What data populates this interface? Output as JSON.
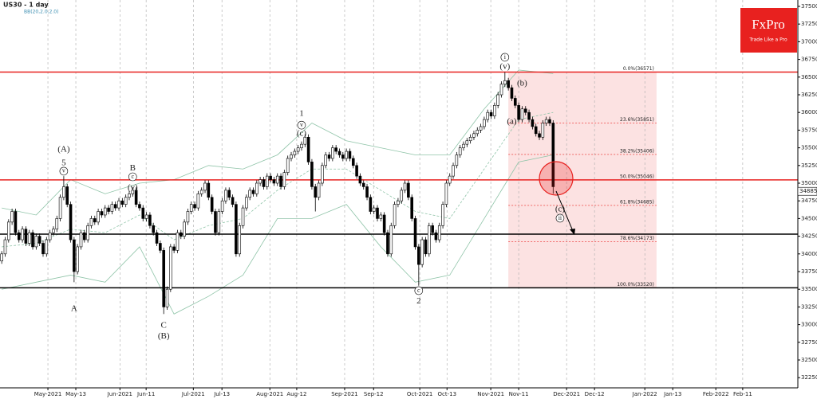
{
  "chart_data": {
    "type": "candlestick",
    "title": "US30 - 1 day",
    "indicator": "BB(20,2.0,2.0)",
    "logo": {
      "name": "FxPro",
      "tagline": "Trade Like a Pro"
    },
    "up_color": "#ffffff",
    "down_color": "#000000",
    "edge_color": "#000000",
    "band_color": "#8fc4a8",
    "xlim": [
      -0.5,
      231
    ],
    "xticks": [
      {
        "value": 13.4,
        "label": "May-2021"
      },
      {
        "value": 21.5,
        "label": "May-13"
      },
      {
        "value": 34.3,
        "label": "Jun-2021"
      },
      {
        "value": 41.9,
        "label": "Jun-11"
      },
      {
        "value": 55.6,
        "label": "Jul-2021"
      },
      {
        "value": 63.9,
        "label": "Jul-13"
      },
      {
        "value": 77.8,
        "label": "Aug-2021"
      },
      {
        "value": 85.6,
        "label": "Aug-12"
      },
      {
        "value": 99.5,
        "label": "Sep-2021"
      },
      {
        "value": 107.9,
        "label": "Sep-12"
      },
      {
        "value": 121.3,
        "label": "Oct-2021"
      },
      {
        "value": 129.2,
        "label": "Oct-13"
      },
      {
        "value": 141.9,
        "label": "Nov-2021"
      },
      {
        "value": 150,
        "label": "Nov-11"
      },
      {
        "value": 163.9,
        "label": "Dec-2021"
      },
      {
        "value": 172,
        "label": "Dec-12"
      },
      {
        "value": 186.6,
        "label": "Jan-2022"
      },
      {
        "value": 194.7,
        "label": "Jan-13"
      },
      {
        "value": 207.2,
        "label": "Feb-2022"
      },
      {
        "value": 215,
        "label": "Feb-11"
      }
    ],
    "ylim": [
      32106,
      37590
    ],
    "yticks": [
      32250,
      32500,
      32750,
      33000,
      33250,
      33500,
      33750,
      34000,
      34250,
      34500,
      34750,
      35000,
      35250,
      35500,
      35750,
      36000,
      36250,
      36500,
      36750,
      37000,
      37250,
      37500
    ],
    "grid": true,
    "open": [
      33900,
      34000,
      34200,
      34450,
      34600,
      34300,
      34200,
      34350,
      34150,
      34300,
      34100,
      34250,
      34150,
      34000,
      34200,
      34300,
      34350,
      34500,
      34800,
      34950,
      34700,
      34200,
      33750,
      34100,
      34300,
      34200,
      34400,
      34500,
      34450,
      34600,
      34550,
      34650,
      34600,
      34700,
      34650,
      34750,
      34700,
      34800,
      34850,
      34900,
      34700,
      34650,
      34500,
      34550,
      34400,
      34300,
      34150,
      34050,
      33250,
      33500,
      34100,
      34050,
      34300,
      34250,
      34450,
      34600,
      34700,
      34650,
      34850,
      34900,
      35000,
      34800,
      34600,
      34300,
      34600,
      34750,
      34900,
      34800,
      34700,
      34000,
      34400,
      34650,
      34800,
      34900,
      34850,
      35000,
      35050,
      34950,
      35100,
      35050,
      35000,
      35100,
      34950,
      35150,
      35350,
      35400,
      35450,
      35500,
      35550,
      35650,
      35300,
      34950,
      34800,
      35000,
      35250,
      35400,
      35350,
      35500,
      35450,
      35400,
      35350,
      35450,
      35350,
      35250,
      35100,
      35000,
      34950,
      34800,
      34600,
      34650,
      34500,
      34550,
      34300,
      34000,
      34400,
      34700,
      34750,
      34900,
      35000,
      34800,
      34500,
      34100,
      33850,
      34200,
      34000,
      34400,
      34300,
      34200,
      34400,
      34700,
      35000,
      35100,
      35250,
      35400,
      35500,
      35550,
      35600,
      35650,
      35700,
      35750,
      35800,
      35900,
      36000,
      35950,
      36100,
      36250,
      36400,
      36450,
      36350,
      36200,
      36100,
      35900,
      36050,
      36000,
      35900,
      35800,
      35700,
      35650,
      35850,
      35900,
      35850
    ],
    "high": [
      34040,
      34240,
      34490,
      34640,
      34640,
      34340,
      34390,
      34390,
      34340,
      34340,
      34290,
      34290,
      34190,
      34240,
      34340,
      34390,
      34540,
      34840,
      35100,
      34990,
      34740,
      34240,
      34140,
      34340,
      34340,
      34440,
      34540,
      34540,
      34640,
      34640,
      34690,
      34690,
      34740,
      34740,
      34790,
      34790,
      34840,
      34890,
      34940,
      34940,
      34740,
      34690,
      34590,
      34590,
      34440,
      34340,
      34190,
      34090,
      33540,
      34140,
      34140,
      34340,
      34340,
      34490,
      34640,
      34740,
      34740,
      34890,
      34940,
      35040,
      35040,
      34840,
      34640,
      34640,
      34790,
      34940,
      34940,
      34840,
      34740,
      34440,
      34690,
      34840,
      34940,
      34940,
      35040,
      35090,
      35090,
      35140,
      35140,
      35090,
      35140,
      35140,
      35190,
      35390,
      35440,
      35490,
      35540,
      35590,
      35690,
      35690,
      35340,
      34990,
      35040,
      35290,
      35440,
      35440,
      35540,
      35540,
      35490,
      35440,
      35490,
      35490,
      35390,
      35290,
      35140,
      35040,
      34990,
      34840,
      34690,
      34690,
      34590,
      34590,
      34340,
      34440,
      34740,
      34790,
      34940,
      35040,
      35040,
      34840,
      34540,
      34140,
      34240,
      34240,
      34440,
      34440,
      34340,
      34440,
      34740,
      35040,
      35140,
      35290,
      35440,
      35540,
      35590,
      35640,
      35690,
      35740,
      35790,
      35840,
      35940,
      36040,
      36040,
      36140,
      36290,
      36440,
      36571,
      36490,
      36390,
      36240,
      36140,
      36090,
      36090,
      36040,
      35940,
      35840,
      35740,
      35890,
      35940,
      35940,
      35890
    ],
    "low": [
      33860,
      33960,
      34160,
      34410,
      34260,
      34160,
      34160,
      34110,
      34110,
      34060,
      34060,
      34110,
      33960,
      33960,
      34160,
      34260,
      34310,
      34460,
      34760,
      34660,
      34160,
      33600,
      33710,
      34060,
      34160,
      34160,
      34360,
      34410,
      34410,
      34510,
      34510,
      34560,
      34560,
      34610,
      34610,
      34660,
      34660,
      34760,
      34810,
      34660,
      34610,
      34460,
      34460,
      34360,
      34260,
      34110,
      34010,
      33150,
      33210,
      33460,
      34010,
      34010,
      34210,
      34210,
      34410,
      34560,
      34610,
      34610,
      34810,
      34860,
      34760,
      34560,
      34260,
      34260,
      34560,
      34710,
      34760,
      34660,
      33960,
      33960,
      34360,
      34610,
      34760,
      34810,
      34810,
      34960,
      34910,
      34910,
      35010,
      34960,
      34960,
      34910,
      34910,
      35110,
      35310,
      35360,
      35410,
      35460,
      35510,
      35260,
      34910,
      34600,
      34760,
      34960,
      35210,
      35310,
      35310,
      35410,
      35360,
      35310,
      35310,
      35310,
      35210,
      35060,
      34960,
      34910,
      34760,
      34560,
      34560,
      34460,
      34460,
      34260,
      33960,
      33960,
      34360,
      34660,
      34710,
      34860,
      34760,
      34460,
      34060,
      33550,
      33810,
      33960,
      33960,
      34260,
      34160,
      34160,
      34360,
      34660,
      34960,
      35060,
      35210,
      35360,
      35460,
      35510,
      35560,
      35610,
      35660,
      35710,
      35760,
      35860,
      35910,
      35910,
      36060,
      36210,
      36360,
      36310,
      36160,
      36060,
      35860,
      35860,
      35960,
      35860,
      35760,
      35660,
      35610,
      35610,
      35810,
      35810,
      34850
    ],
    "close": [
      34000,
      34200,
      34450,
      34600,
      34300,
      34200,
      34350,
      34150,
      34300,
      34100,
      34250,
      34150,
      34000,
      34200,
      34300,
      34350,
      34500,
      34800,
      34950,
      34700,
      34200,
      33750,
      34100,
      34300,
      34200,
      34400,
      34500,
      34450,
      34600,
      34550,
      34650,
      34600,
      34700,
      34650,
      34750,
      34700,
      34800,
      34850,
      34900,
      34700,
      34650,
      34500,
      34550,
      34400,
      34300,
      34150,
      34050,
      33250,
      33500,
      34100,
      34050,
      34300,
      34250,
      34450,
      34600,
      34700,
      34650,
      34850,
      34900,
      35000,
      34800,
      34600,
      34300,
      34600,
      34750,
      34900,
      34800,
      34700,
      34000,
      34400,
      34650,
      34800,
      34900,
      34850,
      35000,
      35050,
      34950,
      35100,
      35050,
      35000,
      35100,
      34950,
      35150,
      35350,
      35400,
      35450,
      35500,
      35550,
      35650,
      35300,
      34950,
      34800,
      35000,
      35250,
      35400,
      35350,
      35500,
      35450,
      35400,
      35350,
      35450,
      35350,
      35250,
      35100,
      35000,
      34950,
      34800,
      34600,
      34650,
      34500,
      34550,
      34300,
      34000,
      34400,
      34700,
      34750,
      34900,
      35000,
      34800,
      34500,
      34100,
      33850,
      34200,
      34000,
      34400,
      34300,
      34200,
      34400,
      34700,
      35000,
      35100,
      35250,
      35400,
      35500,
      35550,
      35600,
      35650,
      35700,
      35750,
      35800,
      35900,
      36000,
      35950,
      36100,
      36250,
      36400,
      36450,
      36350,
      36200,
      36100,
      35900,
      36050,
      36000,
      35900,
      35800,
      35700,
      35650,
      35850,
      35900,
      35850,
      34950
    ],
    "bands": {
      "x": [
        0,
        10,
        20,
        30,
        40,
        50,
        60,
        70,
        80,
        90,
        100,
        110,
        120,
        130,
        140,
        150,
        160
      ],
      "upper": [
        34650,
        34550,
        35050,
        34850,
        35000,
        35050,
        35250,
        35200,
        35400,
        35850,
        35600,
        35500,
        35400,
        35400,
        36050,
        36600,
        36550
      ],
      "middle": [
        34100,
        34150,
        34350,
        34300,
        34550,
        34200,
        34400,
        34500,
        34900,
        35200,
        35200,
        34900,
        34600,
        34500,
        35200,
        35900,
        36000
      ],
      "lower": [
        33500,
        33600,
        33700,
        33600,
        34100,
        33150,
        33400,
        33700,
        34500,
        34500,
        34700,
        34100,
        33600,
        33700,
        34500,
        35300,
        35400
      ]
    },
    "hlines": [
      {
        "value": 36571,
        "color": "#e8211f"
      },
      {
        "value": 35046,
        "color": "#e8211f"
      },
      {
        "value": 34280,
        "color": "#000000"
      },
      {
        "value": 33520,
        "color": "#000000"
      }
    ],
    "fib": {
      "x0": 147,
      "x1": 190,
      "levels": [
        {
          "value": 36571,
          "label": "0.0%(36571)"
        },
        {
          "value": 35851,
          "label": "23.6%(35851)"
        },
        {
          "value": 35406,
          "label": "38.2%(35406)"
        },
        {
          "value": 35046,
          "label": "50.0%(35046)"
        },
        {
          "value": 34685,
          "label": "61.8%(34685)"
        },
        {
          "value": 34173,
          "label": "78.6%(34173)"
        },
        {
          "value": 33520,
          "label": "100.0%(33520)"
        }
      ]
    },
    "last_price": 34885,
    "annotations": [
      {
        "text": "(A)",
        "x": 18,
        "y": 35473
      },
      {
        "text": "5",
        "x": 18,
        "y": 35280
      },
      {
        "text": "v",
        "x": 18,
        "y": 35170,
        "circled": true
      },
      {
        "text": "A",
        "x": 21,
        "y": 33220
      },
      {
        "text": "B",
        "x": 38,
        "y": 35210
      },
      {
        "text": "c",
        "x": 38,
        "y": 35090,
        "circled": true
      },
      {
        "text": "(v)",
        "x": 38,
        "y": 34930
      },
      {
        "text": "C",
        "x": 47,
        "y": 32985
      },
      {
        "text": "(B)",
        "x": 47,
        "y": 32830
      },
      {
        "text": "1",
        "x": 87,
        "y": 35980
      },
      {
        "text": "v",
        "x": 87,
        "y": 35820,
        "circled": true
      },
      {
        "text": "(c)",
        "x": 87,
        "y": 35700
      },
      {
        "text": "c",
        "x": 121,
        "y": 33480,
        "circled": true
      },
      {
        "text": "2",
        "x": 121,
        "y": 33330
      },
      {
        "text": "i",
        "x": 146,
        "y": 36780,
        "circled": true
      },
      {
        "text": "(v)",
        "x": 146,
        "y": 36645
      },
      {
        "text": "(b)",
        "x": 151,
        "y": 36410
      },
      {
        "text": "(a)",
        "x": 148,
        "y": 35870
      },
      {
        "text": "(c)",
        "x": 162,
        "y": 34630
      },
      {
        "text": "ii",
        "x": 162,
        "y": 34505,
        "circled": true
      }
    ]
  }
}
